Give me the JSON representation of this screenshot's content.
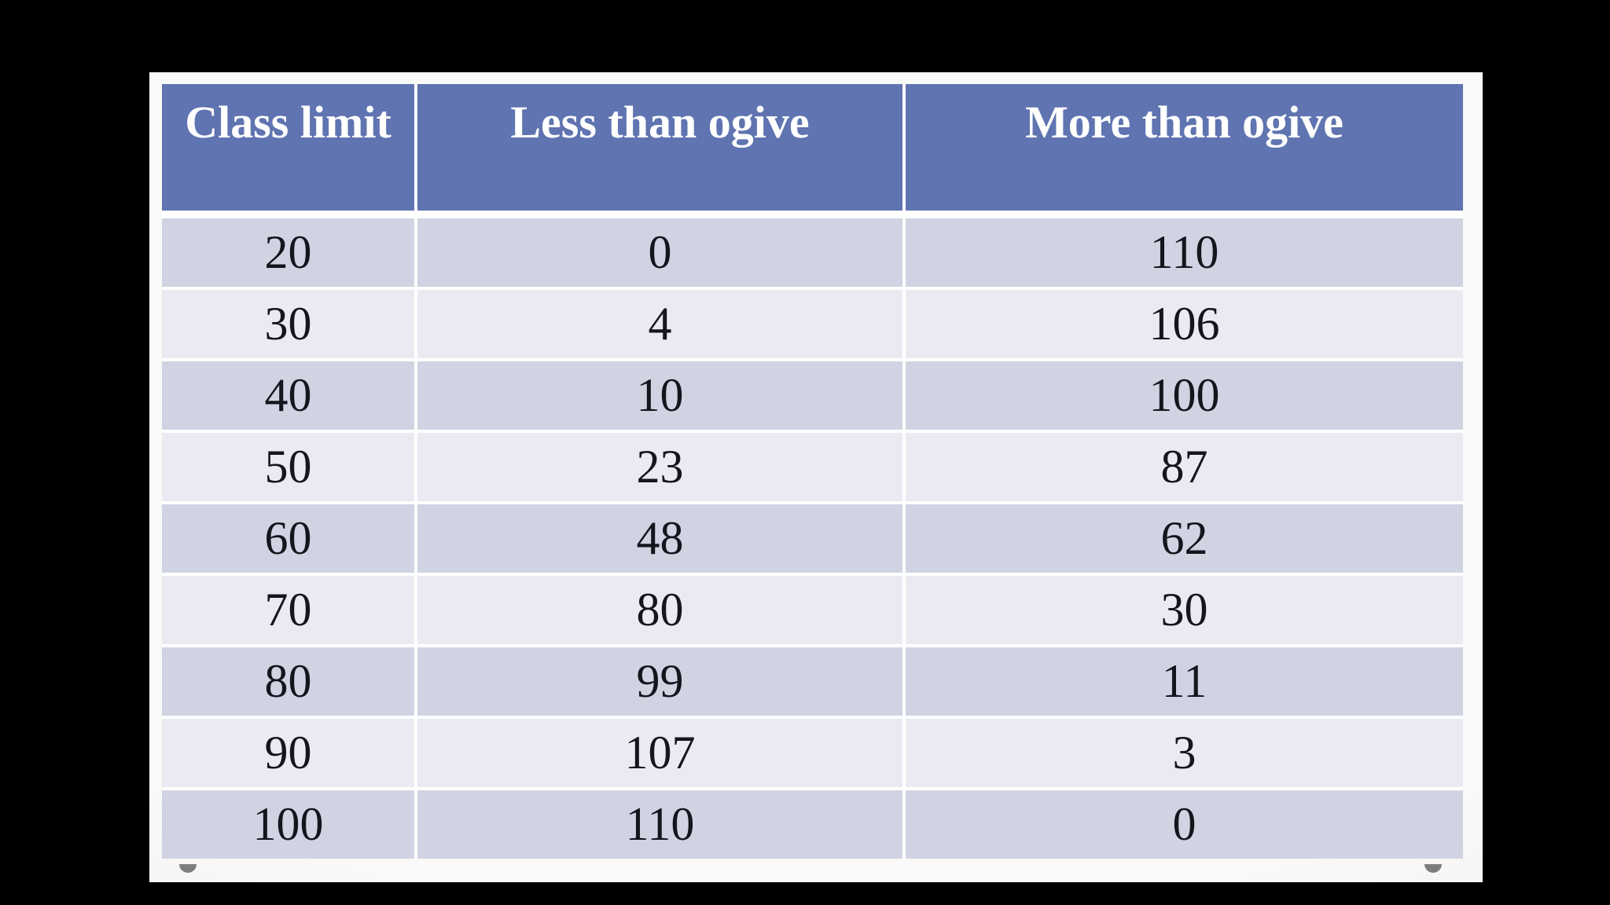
{
  "window": {
    "background_color": "#000000"
  },
  "panel": {
    "background_color": "#f4f4f2"
  },
  "colors": {
    "header_bg": "#5f74b0",
    "header_text": "#ffffff",
    "row_dark_bg": "#d0d4e2",
    "row_light_bg": "#eaebf2",
    "cell_text": "#15151d",
    "grid_line": "#ffffff",
    "handle_gray": "#7d7d7d"
  },
  "chart_data": {
    "type": "table",
    "title": "",
    "columns": [
      "Class limit",
      "Less than ogive",
      "More than ogive"
    ],
    "rows": [
      [
        "20",
        "0",
        "110"
      ],
      [
        "30",
        "4",
        "106"
      ],
      [
        "40",
        "10",
        "100"
      ],
      [
        "50",
        "23",
        "87"
      ],
      [
        "60",
        "48",
        "62"
      ],
      [
        "70",
        "80",
        "30"
      ],
      [
        "80",
        "99",
        "11"
      ],
      [
        "90",
        "107",
        "3"
      ],
      [
        "100",
        "110",
        "0"
      ]
    ],
    "x_values": [
      20,
      30,
      40,
      50,
      60,
      70,
      80,
      90,
      100
    ],
    "series": [
      {
        "name": "Less than ogive",
        "values": [
          0,
          4,
          10,
          23,
          48,
          80,
          99,
          107,
          110
        ]
      },
      {
        "name": "More than ogive",
        "values": [
          110,
          106,
          100,
          87,
          62,
          30,
          11,
          3,
          0
        ]
      }
    ],
    "layout_hints": {
      "banding": "alternating rows, first data row dark",
      "header_align": "top center",
      "cell_align": "center"
    }
  }
}
